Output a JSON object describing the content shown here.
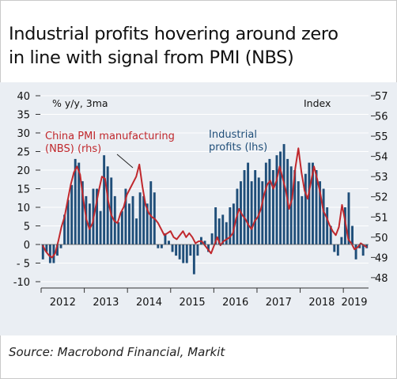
{
  "title_lines": [
    "Industrial profits hovering around zero",
    "in line with signal from PMI (NBS)"
  ],
  "source": "Source: Macrobond Financial, Markit",
  "colors": {
    "bars": "#1f4e79",
    "pmi_line": "#c0282d",
    "background": "#eaeef3",
    "grid": "#ffffff"
  },
  "chart_data": {
    "type": "bar",
    "unit_left": "% y/y, 3ma",
    "unit_right": "Index",
    "x_tick_labels": [
      "2012",
      "2013",
      "2014",
      "2015",
      "2016",
      "2017",
      "2018",
      "2019"
    ],
    "y_left": {
      "ticks": [
        "40",
        "35",
        "30",
        "25",
        "20",
        "15",
        "10",
        "5",
        "0",
        "- 5",
        "-10"
      ],
      "lim": [
        -10,
        40
      ]
    },
    "y_right": {
      "ticks": [
        "57",
        "56",
        "55",
        "54",
        "53",
        "52",
        "51",
        "50",
        "49",
        "48"
      ],
      "lim": [
        47.8,
        57
      ]
    },
    "annotations": [
      {
        "text_lines": [
          "China PMI manufacturing",
          "(NBS) (rhs)"
        ],
        "color": "#c0282d"
      },
      {
        "text_lines": [
          "Industrial",
          "profits (lhs)"
        ],
        "color": "#1f4e79"
      }
    ],
    "series": [
      {
        "name": "Industrial profits (lhs)",
        "kind": "bar",
        "period": "2012-01 to 2019-02 (monthly, approx.)",
        "values": [
          -4,
          -2,
          -5,
          -5,
          -3,
          -1,
          8,
          12,
          16,
          23,
          22,
          17,
          13,
          11,
          15,
          15,
          9,
          24,
          21,
          18,
          13,
          6,
          9,
          15,
          11,
          13,
          7,
          14,
          13,
          11,
          17,
          14,
          -1,
          -1,
          3,
          1,
          -2,
          -3,
          -4,
          -5,
          -5,
          -3,
          -8,
          -3,
          2,
          1,
          -2,
          3,
          10,
          7,
          8,
          6,
          10,
          11,
          15,
          17,
          20,
          22,
          17,
          20,
          18,
          17,
          22,
          23,
          20,
          24,
          25,
          27,
          23,
          21,
          20,
          17,
          13,
          19,
          22,
          22,
          20,
          17,
          15,
          10,
          5,
          -2,
          -3,
          2,
          10,
          14,
          5,
          -4,
          -1,
          -3,
          -1
        ]
      },
      {
        "name": "China PMI manufacturing (NBS) (rhs)",
        "kind": "line",
        "values": [
          49.6,
          49.3,
          49.1,
          49.0,
          49.2,
          49.8,
          50.5,
          51.0,
          51.8,
          52.6,
          53.2,
          53.5,
          53.1,
          51.9,
          50.9,
          50.4,
          50.7,
          51.5,
          52.3,
          53.0,
          52.9,
          51.8,
          51.1,
          50.8,
          50.7,
          51.2,
          51.5,
          52.1,
          52.4,
          52.7,
          53.0,
          53.6,
          52.5,
          51.6,
          51.2,
          51.0,
          50.9,
          50.7,
          50.4,
          50.1,
          50.2,
          50.3,
          50.0,
          49.9,
          50.1,
          50.3,
          50.0,
          50.2,
          50.0,
          49.7,
          49.8,
          49.8,
          49.6,
          49.4,
          49.2,
          49.6,
          50.0,
          49.6,
          49.8,
          49.9,
          50.0,
          50.2,
          50.9,
          51.4,
          51.1,
          50.9,
          50.6,
          50.4,
          50.8,
          51.0,
          51.4,
          52.1,
          52.6,
          52.8,
          52.4,
          52.8,
          53.5,
          52.9,
          52.3,
          51.4,
          51.9,
          53.4,
          54.4,
          53.2,
          52.3,
          51.9,
          52.7,
          53.5,
          52.9,
          52.2,
          51.3,
          51.0,
          50.6,
          50.3,
          50.1,
          50.5,
          51.6,
          50.8,
          49.9,
          49.7,
          49.4,
          49.5,
          49.7,
          49.6,
          49.5
        ]
      }
    ]
  }
}
